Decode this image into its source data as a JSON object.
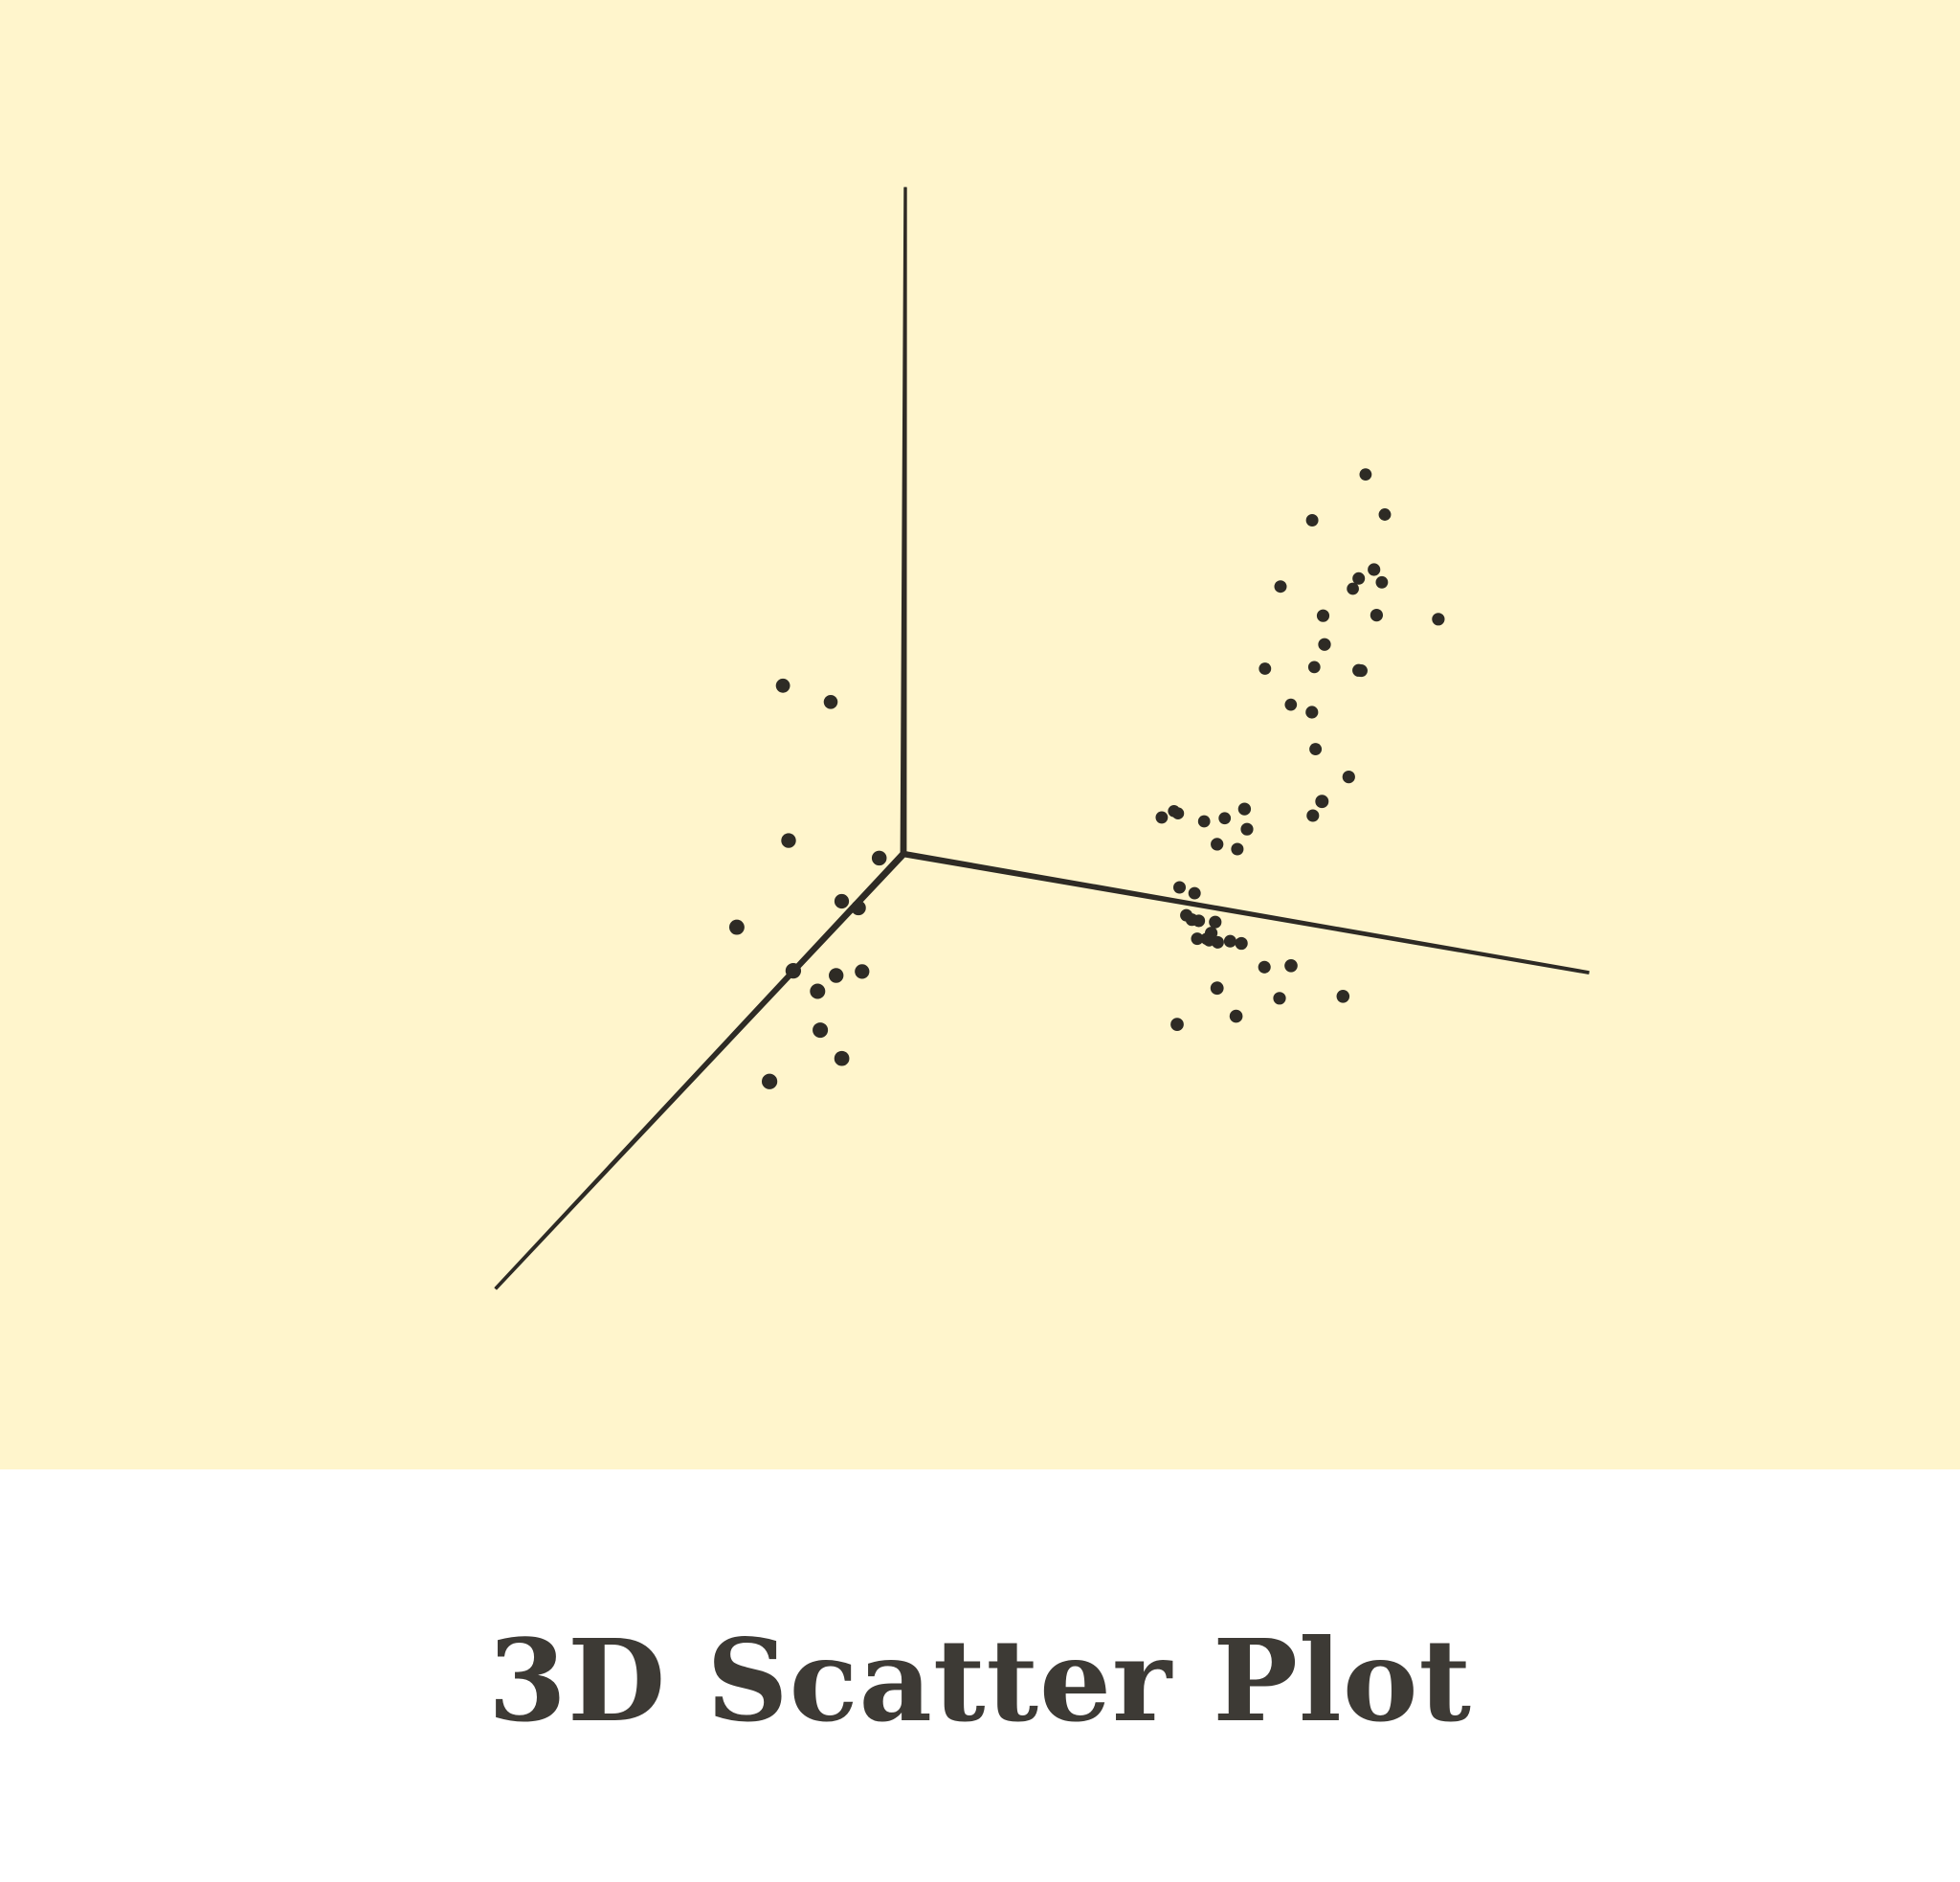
{
  "colors": {
    "plot_background": "#fff5cc",
    "ink": "#2e2b25",
    "caption_background": "#ffffff",
    "caption_text": "#3d3a35"
  },
  "caption": {
    "title": "3D Scatter Plot"
  },
  "chart_data": {
    "type": "scatter",
    "dimensions": 3,
    "axes": [
      "x",
      "y",
      "z"
    ],
    "axis_ranges": {
      "x": [
        0,
        10
      ],
      "y": [
        0,
        10
      ],
      "z": [
        0,
        10
      ]
    },
    "tick_labels": false,
    "grid": false,
    "legend": "none",
    "points": [
      [
        7.2,
        0.8,
        7.5
      ],
      [
        7.6,
        1.0,
        7.1
      ],
      [
        6.6,
        1.1,
        6.9
      ],
      [
        7.4,
        1.3,
        6.3
      ],
      [
        7.5,
        0.9,
        6.0
      ],
      [
        6.2,
        1.2,
        5.9
      ],
      [
        7.8,
        1.6,
        6.7
      ],
      [
        7.0,
        1.5,
        5.8
      ],
      [
        7.9,
        1.7,
        6.1
      ],
      [
        6.9,
        0.6,
        5.6
      ],
      [
        7.2,
        1.8,
        5.6
      ],
      [
        7.7,
        1.8,
        5.3
      ],
      [
        7.5,
        1.4,
        5.0
      ],
      [
        8.8,
        1.7,
        6.2
      ],
      [
        6.4,
        0.7,
        4.4
      ],
      [
        6.9,
        1.6,
        4.4
      ],
      [
        5.8,
        0.9,
        4.4
      ],
      [
        6.0,
        0.6,
        3.7
      ],
      [
        6.6,
        1.0,
        3.4
      ],
      [
        7.5,
        1.7,
        3.6
      ],
      [
        6.1,
        1.9,
        3.0
      ],
      [
        5.7,
        1.9,
        2.4
      ],
      [
        5.7,
        1.4,
        2.0
      ],
      [
        6.8,
        1.4,
        2.7
      ],
      [
        5.9,
        1.5,
        2.4
      ],
      [
        8.0,
        3.2,
        4.3
      ],
      [
        1.2,
        5.0,
        6.0
      ],
      [
        1.6,
        4.5,
        5.5
      ],
      [
        2.0,
        6.2,
        4.6
      ],
      [
        1.9,
        7.3,
        4.0
      ],
      [
        3.5,
        6.5,
        4.8
      ],
      [
        3.2,
        6.5,
        4.0
      ],
      [
        3.2,
        8.1,
        4.1
      ],
      [
        2.6,
        5.9,
        3.6
      ],
      [
        3.2,
        7.5,
        3.4
      ],
      [
        2.7,
        6.2,
        2.7
      ],
      [
        3.3,
        7.6,
        2.9
      ],
      [
        3.2,
        6.9,
        2.0
      ],
      [
        2.8,
        8.0,
        2.3
      ],
      [
        2.9,
        5.9,
        2.6
      ],
      [
        4.3,
        0.6,
        1.8
      ],
      [
        4.3,
        0.9,
        1.9
      ],
      [
        4.3,
        0.5,
        1.7
      ],
      [
        4.8,
        0.7,
        1.8
      ],
      [
        5.1,
        0.7,
        1.9
      ],
      [
        4.8,
        1.3,
        1.2
      ],
      [
        4.9,
        1.1,
        1.0
      ],
      [
        5.1,
        1.5,
        0.9
      ],
      [
        4.9,
        1.3,
        0.8
      ],
      [
        5.2,
        1.5,
        0.9
      ],
      [
        5.5,
        1.6,
        1.0
      ],
      [
        5.5,
        1.7,
        0.9
      ],
      [
        5.6,
        1.4,
        0.6
      ],
      [
        5.2,
        1.3,
        0.5
      ],
      [
        5.0,
        1.2,
        0.4
      ],
      [
        5.3,
        1.2,
        0.4
      ],
      [
        6.0,
        1.8,
        0.9
      ],
      [
        6.1,
        1.4,
        0.3
      ],
      [
        7.2,
        2.6,
        1.3
      ],
      [
        7.9,
        2.5,
        0.9
      ],
      [
        6.5,
        1.7,
        0.1
      ],
      [
        6.4,
        2.6,
        0.4
      ],
      [
        6.3,
        2.9,
        1.0
      ],
      [
        5.6,
        2.7,
        0.2
      ],
      [
        4.7,
        0.4,
        -0.2
      ]
    ]
  }
}
